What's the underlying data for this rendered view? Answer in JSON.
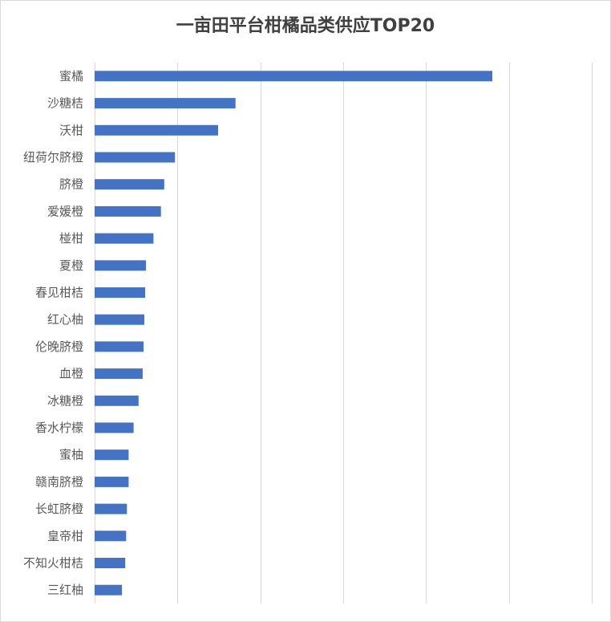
{
  "chart_data": {
    "type": "bar",
    "orientation": "horizontal",
    "title": "一亩田平台柑橘品类供应TOP20",
    "categories": [
      "蜜橘",
      "沙糖桔",
      "沃柑",
      "纽荷尔脐橙",
      "脐橙",
      "爱媛橙",
      "椪柑",
      "夏橙",
      "春见柑桔",
      "红心柚",
      "伦晚脐橙",
      "血橙",
      "冰糖橙",
      "香水柠檬",
      "蜜柚",
      "赣南脐橙",
      "长虹脐橙",
      "皇帝柑",
      "不知火柑桔",
      "三红柚"
    ],
    "values": [
      4.8,
      1.7,
      1.49,
      0.97,
      0.84,
      0.8,
      0.71,
      0.62,
      0.61,
      0.6,
      0.59,
      0.58,
      0.53,
      0.47,
      0.41,
      0.41,
      0.39,
      0.38,
      0.37,
      0.33
    ],
    "xlim": [
      0,
      6
    ],
    "grid": true,
    "x_tick_labels_visible": false,
    "bar_color": "#4472c4",
    "grid_color": "#d9d9d9"
  }
}
